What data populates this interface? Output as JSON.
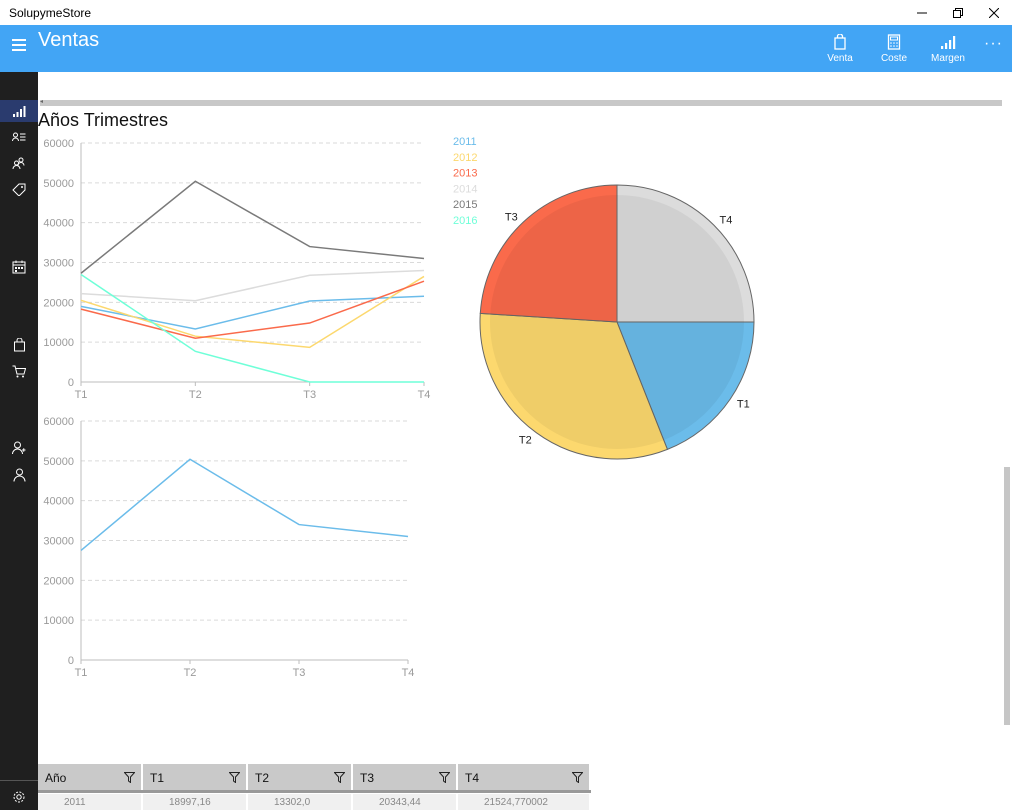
{
  "window": {
    "title": "SolupymeStore",
    "controls": [
      "minimize",
      "restore",
      "close"
    ]
  },
  "header": {
    "title": "Ventas",
    "commands": [
      {
        "label": "Venta",
        "icon": "shopping-bag-icon"
      },
      {
        "label": "Coste",
        "icon": "calculator-icon"
      },
      {
        "label": "Margen",
        "icon": "bar-chart-icon"
      }
    ],
    "more": "···"
  },
  "sidebar": {
    "items": [
      {
        "icon": "bar-chart-icon",
        "active": true
      },
      {
        "icon": "contact-list-icon"
      },
      {
        "icon": "people-icon"
      },
      {
        "icon": "tag-icon"
      },
      {
        "icon": "calendar-icon"
      },
      {
        "icon": "shopping-bag-icon"
      },
      {
        "icon": "cart-icon"
      },
      {
        "icon": "contact-icon"
      },
      {
        "icon": "person-icon"
      },
      {
        "icon": "settings-icon"
      }
    ]
  },
  "content": {
    "section_title": "Años Trimestres"
  },
  "colors": {
    "accent": "#42a5f5",
    "2011": "#6bbcea",
    "2012": "#fcd86e",
    "2013": "#fa6a4b",
    "2014": "#dcdcdc",
    "2015": "#7a7a7a",
    "2016": "#6fffd8"
  },
  "chart_data": [
    {
      "type": "line",
      "x": [
        "T1",
        "T2",
        "T3",
        "T4"
      ],
      "ylim": [
        0,
        60000
      ],
      "yticks": [
        0,
        10000,
        20000,
        30000,
        40000,
        50000,
        60000
      ],
      "grid": true,
      "legend_position": "right",
      "series": [
        {
          "name": "2011",
          "values": [
            18997,
            13302,
            20343,
            21524
          ]
        },
        {
          "name": "2012",
          "values": [
            20500,
            11500,
            8700,
            26500
          ]
        },
        {
          "name": "2013",
          "values": [
            18300,
            11000,
            14800,
            25300
          ]
        },
        {
          "name": "2014",
          "values": [
            22200,
            20400,
            26800,
            28000
          ]
        },
        {
          "name": "2015",
          "values": [
            27300,
            50400,
            34000,
            31000
          ]
        },
        {
          "name": "2016",
          "values": [
            27000,
            7700,
            0,
            0
          ]
        }
      ]
    },
    {
      "type": "line",
      "x": [
        "T1",
        "T2",
        "T3",
        "T4"
      ],
      "ylim": [
        0,
        60000
      ],
      "yticks": [
        0,
        10000,
        20000,
        30000,
        40000,
        50000,
        60000
      ],
      "grid": true,
      "series": [
        {
          "values": [
            27500,
            50400,
            34000,
            31000
          ]
        }
      ]
    },
    {
      "type": "pie",
      "slices": [
        {
          "label": "T1",
          "value": 19,
          "color": "#6bbcea"
        },
        {
          "label": "T2",
          "value": 32,
          "color": "#fcd86e"
        },
        {
          "label": "T3",
          "value": 24,
          "color": "#fa6a4b"
        },
        {
          "label": "T4",
          "value": 25,
          "color": "#dcdcdc"
        }
      ]
    }
  ],
  "grid": {
    "columns": [
      "Año",
      "T1",
      "T2",
      "T3",
      "T4"
    ],
    "rows": [
      [
        "2011",
        "18997,16",
        "13302,0",
        "20343,44",
        "21524,770002"
      ]
    ]
  }
}
